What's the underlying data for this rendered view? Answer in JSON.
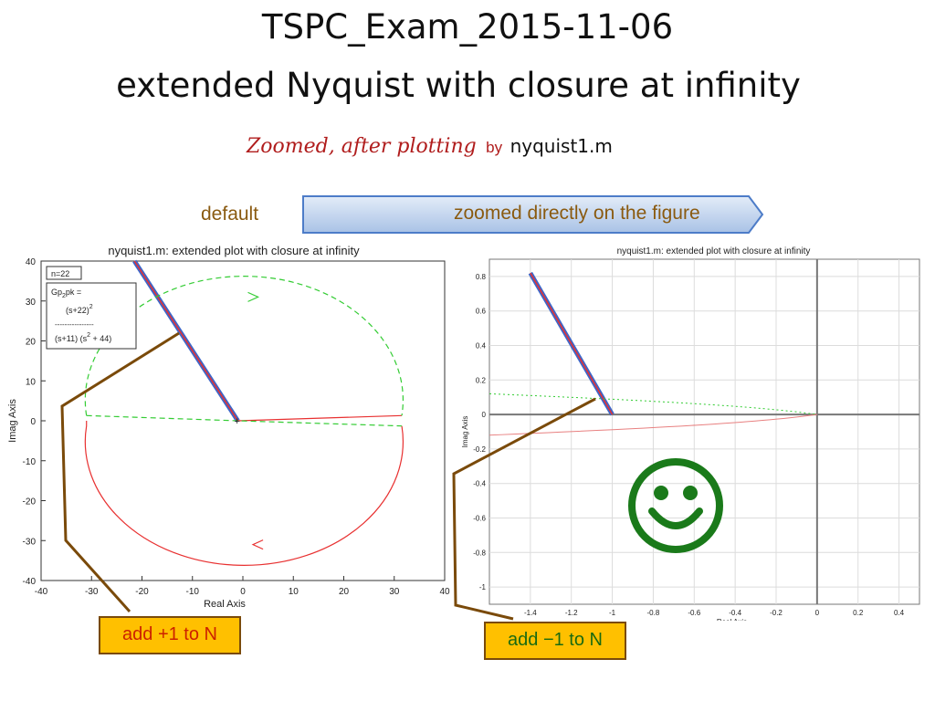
{
  "slide": {
    "title_line1": "TSPC_Exam_2015-11-06",
    "title_line2": "extended Nyquist with closure at infinity",
    "subtitle_italic": "Zoomed, after plotting",
    "subtitle_by": "by",
    "subtitle_file": "nyquist1.m",
    "label_default": "default",
    "arrow_label": "zoomed directly on the figure",
    "callout_left": "add +1 to N",
    "callout_right": "add −1 to N"
  },
  "colors": {
    "title": "#111111",
    "subtitle_red": "#b01c1c",
    "label_brown": "#8a5a10",
    "callout_fill": "#ffc000",
    "callout_border": "#7a4a0a",
    "leader_line": "#7a4a0a",
    "curve_red": "#e83030",
    "curve_green_dashed": "#33cc33",
    "line_blue": "#3d66c8",
    "smiley_green": "#1a7a1a",
    "arrow_fill": "#c9d9f0"
  },
  "icons": {
    "smiley": "smiley-face-icon",
    "banner_arrow": "right-arrow-banner"
  },
  "chart_data": [
    {
      "type": "line",
      "title": "nyquist1.m: extended plot with closure at infinity",
      "xlabel": "Real Axis",
      "ylabel": "Imag Axis",
      "xlim": [
        -40,
        40
      ],
      "ylim": [
        -40,
        40
      ],
      "xticks": [
        "-40",
        "-30",
        "-20",
        "-10",
        "0",
        "10",
        "20",
        "30",
        "40"
      ],
      "yticks": [
        "40",
        "30",
        "20",
        "10",
        "0",
        "-10",
        "-20",
        "-30",
        "-40"
      ],
      "grid": false,
      "legend_box": {
        "n_label": "n=22",
        "tf_name": "Gp",
        "tf_sub": "2",
        "tf_name_suffix": "pk =",
        "numerator": "(s+22)",
        "numerator_exp": "2",
        "dashes": "----------------",
        "denominator_a": "(s+11) (s",
        "denominator_exp": "2",
        "denominator_b": " + 44)"
      },
      "series": [
        {
          "style": "line",
          "x": [
            -21.5,
            -1
          ],
          "y": [
            40,
            0
          ]
        },
        {
          "style": "solid",
          "x": [
            -1,
            31.5
          ],
          "y": [
            0,
            1.3
          ]
        },
        {
          "style": "solid",
          "x": [
            31.5,
            30,
            20,
            5,
            -10,
            -25,
            -30,
            -31
          ],
          "y": [
            -1.3,
            -10,
            -22,
            -30,
            -28,
            -15,
            -5,
            -1.3
          ]
        },
        {
          "style": "dashed",
          "x": [
            -31,
            -28,
            -20,
            -5,
            5,
            20,
            30,
            31.5
          ],
          "y": [
            1.3,
            12,
            25,
            31,
            31,
            25,
            12,
            1.3
          ]
        },
        {
          "style": "dashed",
          "x": [
            -31,
            -1,
            31.5
          ],
          "y": [
            1.3,
            0,
            -1.3
          ]
        }
      ]
    },
    {
      "type": "line",
      "title": "nyquist1.m: extended plot with closure at infinity",
      "xlabel": "Real Axis",
      "ylabel": "Imag Axis",
      "xlim": [
        -1.6,
        0.5
      ],
      "ylim": [
        -1.1,
        0.9
      ],
      "xticks": [
        "-1.4",
        "-1.2",
        "-1",
        "-0.8",
        "-0.6",
        "-0.4",
        "-0.2",
        "0",
        "0.2",
        "0.4"
      ],
      "yticks": [
        "0.8",
        "0.6",
        "0.4",
        "0.2",
        "0",
        "-0.2",
        "-0.4",
        "-0.6",
        "-0.8",
        "-1"
      ],
      "grid": true,
      "series": [
        {
          "style": "line",
          "x": [
            -1.4,
            -1
          ],
          "y": [
            0.82,
            0
          ]
        },
        {
          "style": "dotted",
          "x": [
            -1.6,
            -0.8,
            -0.3,
            0
          ],
          "y": [
            0.12,
            0.08,
            0.05,
            0
          ]
        },
        {
          "style": "solid",
          "x": [
            -1.6,
            -0.8,
            -0.3,
            0
          ],
          "y": [
            -0.12,
            -0.08,
            -0.05,
            0
          ]
        }
      ]
    }
  ]
}
